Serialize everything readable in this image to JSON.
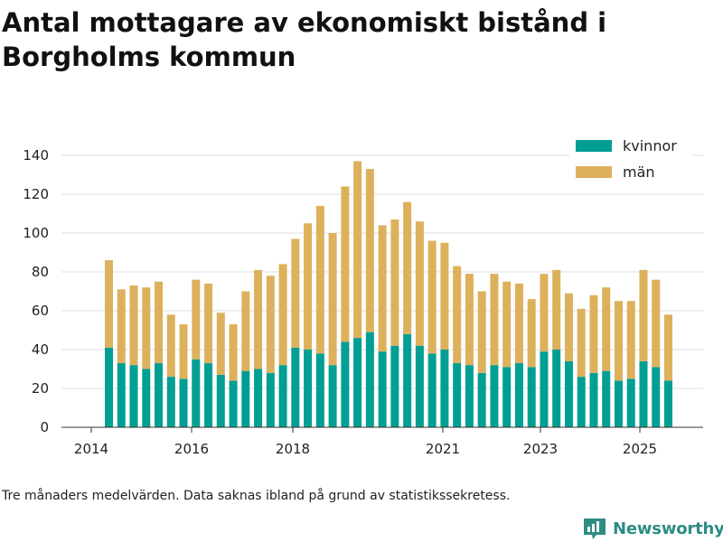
{
  "title": "Antal mottagare av ekonomiskt bistånd i Borgholms kommun",
  "note": "Tre månaders medelvärden. Data saknas ibland på grund av statistikssekretess.",
  "brand": {
    "name": "Newsworthy",
    "icon": "newsworthy-logo-icon",
    "color": "#2e8c85"
  },
  "chart_data": {
    "type": "bar",
    "stacked": true,
    "title": "",
    "xlabel": "",
    "ylabel": "",
    "ylim": [
      0,
      140
    ],
    "yticks": [
      0,
      20,
      40,
      60,
      80,
      100,
      120,
      140
    ],
    "grid": true,
    "legend_position": "top-right",
    "x_tick_labels": [
      "2014",
      "2016",
      "2018",
      "2021",
      "2023",
      "2025"
    ],
    "series": [
      {
        "name": "kvinnor",
        "color": "#009e93",
        "values": [
          41,
          33,
          32,
          30,
          33,
          26,
          25,
          35,
          33,
          27,
          24,
          29,
          30,
          28,
          32,
          41,
          40,
          38,
          32,
          44,
          46,
          49,
          39,
          42,
          48,
          42,
          38,
          40,
          33,
          32,
          28,
          32,
          31,
          33,
          31,
          39,
          40,
          34,
          26,
          28,
          29,
          24,
          25,
          34,
          31,
          24
        ]
      },
      {
        "name": "män",
        "color": "#ddb15c",
        "values": [
          45,
          38,
          41,
          42,
          42,
          32,
          28,
          41,
          41,
          32,
          29,
          41,
          51,
          50,
          52,
          56,
          65,
          76,
          68,
          80,
          91,
          84,
          65,
          65,
          68,
          64,
          58,
          55,
          50,
          47,
          42,
          47,
          44,
          41,
          35,
          40,
          41,
          35,
          35,
          40,
          43,
          41,
          40,
          47,
          45,
          34
        ]
      }
    ]
  }
}
